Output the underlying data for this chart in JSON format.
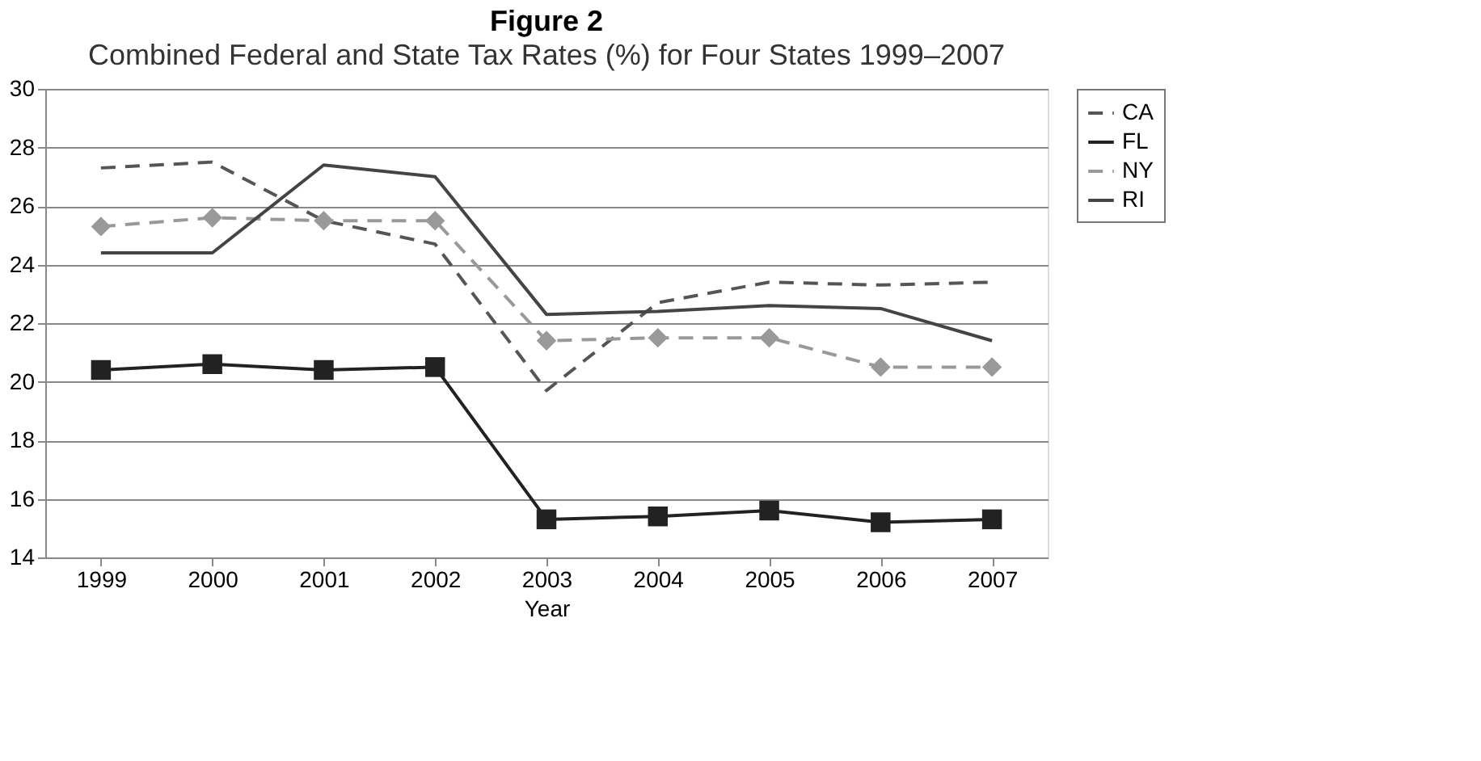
{
  "chart_data": {
    "type": "line",
    "title": "Figure 2",
    "subtitle": "Combined Federal and State Tax Rates (%) for Four States 1999–2007",
    "xlabel": "Year",
    "categories": [
      "1999",
      "2000",
      "2001",
      "2002",
      "2003",
      "2004",
      "2005",
      "2006",
      "2007"
    ],
    "series": [
      {
        "name": "CA",
        "color": "#555555",
        "line_style": "dashed",
        "marker": "none",
        "values": [
          27.3,
          27.5,
          25.5,
          24.7,
          19.7,
          22.7,
          23.4,
          23.3,
          23.4
        ]
      },
      {
        "name": "FL",
        "color": "#222222",
        "line_style": "solid",
        "marker": "square",
        "values": [
          20.4,
          20.6,
          20.4,
          20.5,
          15.3,
          15.4,
          15.6,
          15.2,
          15.3
        ]
      },
      {
        "name": "NY",
        "color": "#999999",
        "line_style": "dashed",
        "marker": "diamond",
        "values": [
          25.3,
          25.6,
          25.5,
          25.5,
          21.4,
          21.5,
          21.5,
          20.5,
          20.5
        ]
      },
      {
        "name": "RI",
        "color": "#444444",
        "line_style": "solid",
        "marker": "none",
        "values": [
          24.4,
          24.4,
          27.4,
          27.0,
          22.3,
          22.4,
          22.6,
          22.5,
          21.4
        ]
      }
    ],
    "ylim": [
      14,
      30
    ],
    "yticks": [
      14,
      16,
      18,
      20,
      22,
      24,
      26,
      28,
      30
    ],
    "grid": "y",
    "legend": "right"
  }
}
